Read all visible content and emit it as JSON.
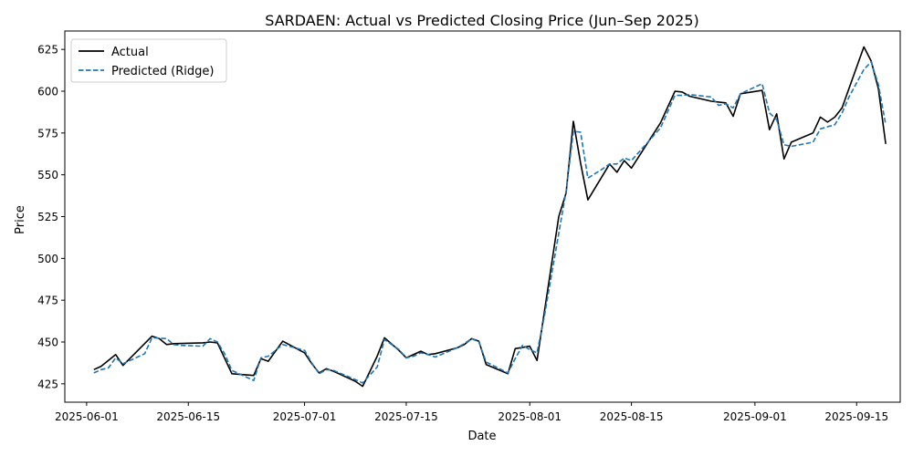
{
  "chart_data": {
    "type": "line",
    "title": "SARDAEN: Actual vs Predicted Closing Price (Jun–Sep 2025)",
    "xlabel": "Date",
    "ylabel": "Price",
    "xlim": [
      "2025-05-29",
      "2025-09-21"
    ],
    "ylim": [
      414,
      636
    ],
    "x_ticks": [
      "2025-06-01",
      "2025-06-15",
      "2025-07-01",
      "2025-07-15",
      "2025-08-01",
      "2025-08-15",
      "2025-09-01",
      "2025-09-15"
    ],
    "y_ticks": [
      425,
      450,
      475,
      500,
      525,
      550,
      575,
      600,
      625
    ],
    "legend_position": "upper-left",
    "grid": false,
    "series": [
      {
        "name": "Actual",
        "color": "#000000",
        "style": "solid",
        "points": [
          [
            "2025-06-02",
            433.5
          ],
          [
            "2025-06-03",
            435.5
          ],
          [
            "2025-06-04",
            439
          ],
          [
            "2025-06-05",
            442.5
          ],
          [
            "2025-06-06",
            436
          ],
          [
            "2025-06-10",
            453.5
          ],
          [
            "2025-06-11",
            452
          ],
          [
            "2025-06-12",
            448.5
          ],
          [
            "2025-06-13",
            449
          ],
          [
            "2025-06-17",
            449.5
          ],
          [
            "2025-06-18",
            450
          ],
          [
            "2025-06-19",
            449.5
          ],
          [
            "2025-06-21",
            431
          ],
          [
            "2025-06-24",
            430
          ],
          [
            "2025-06-25",
            440
          ],
          [
            "2025-06-26",
            438.5
          ],
          [
            "2025-06-28",
            450.5
          ],
          [
            "2025-07-01",
            443.5
          ],
          [
            "2025-07-02",
            437
          ],
          [
            "2025-07-03",
            431.5
          ],
          [
            "2025-07-04",
            434
          ],
          [
            "2025-07-05",
            432.5
          ],
          [
            "2025-07-08",
            426.5
          ],
          [
            "2025-07-09",
            423.5
          ],
          [
            "2025-07-10",
            432.5
          ],
          [
            "2025-07-11",
            441.5
          ],
          [
            "2025-07-12",
            452.5
          ],
          [
            "2025-07-14",
            445
          ],
          [
            "2025-07-15",
            440.5
          ],
          [
            "2025-07-17",
            444.5
          ],
          [
            "2025-07-18",
            442.5
          ],
          [
            "2025-07-19",
            443
          ],
          [
            "2025-07-22",
            446.5
          ],
          [
            "2025-07-23",
            448.5
          ],
          [
            "2025-07-24",
            452
          ],
          [
            "2025-07-25",
            450.5
          ],
          [
            "2025-07-26",
            436.5
          ],
          [
            "2025-07-29",
            431
          ],
          [
            "2025-07-30",
            446
          ],
          [
            "2025-08-01",
            447.5
          ],
          [
            "2025-08-02",
            439
          ],
          [
            "2025-08-05",
            525
          ],
          [
            "2025-08-06",
            539
          ],
          [
            "2025-08-07",
            582
          ],
          [
            "2025-08-08",
            557
          ],
          [
            "2025-08-09",
            535
          ],
          [
            "2025-08-12",
            556.5
          ],
          [
            "2025-08-13",
            551.5
          ],
          [
            "2025-08-14",
            558.5
          ],
          [
            "2025-08-15",
            554
          ],
          [
            "2025-08-19",
            581
          ],
          [
            "2025-08-21",
            600
          ],
          [
            "2025-08-22",
            599.5
          ],
          [
            "2025-08-23",
            597
          ],
          [
            "2025-08-26",
            594
          ],
          [
            "2025-08-28",
            593
          ],
          [
            "2025-08-29",
            585
          ],
          [
            "2025-08-30",
            598.5
          ],
          [
            "2025-09-02",
            600.5
          ],
          [
            "2025-09-03",
            577
          ],
          [
            "2025-09-04",
            586.5
          ],
          [
            "2025-09-05",
            559.5
          ],
          [
            "2025-09-06",
            569.5
          ],
          [
            "2025-09-09",
            575
          ],
          [
            "2025-09-10",
            584.5
          ],
          [
            "2025-09-11",
            581.5
          ],
          [
            "2025-09-12",
            584.5
          ],
          [
            "2025-09-13",
            590
          ],
          [
            "2025-09-16",
            626.5
          ],
          [
            "2025-09-17",
            618
          ],
          [
            "2025-09-18",
            601.5
          ],
          [
            "2025-09-19",
            568.5
          ]
        ]
      },
      {
        "name": "Predicted (Ridge)",
        "color": "#1f77b4",
        "style": "dashed",
        "points": [
          [
            "2025-06-02",
            431.5
          ],
          [
            "2025-06-03",
            433.5
          ],
          [
            "2025-06-04",
            434.5
          ],
          [
            "2025-06-05",
            440.5
          ],
          [
            "2025-06-06",
            437
          ],
          [
            "2025-06-07",
            439
          ],
          [
            "2025-06-09",
            443
          ],
          [
            "2025-06-10",
            452.5
          ],
          [
            "2025-06-12",
            452
          ],
          [
            "2025-06-13",
            448.5
          ],
          [
            "2025-06-14",
            448
          ],
          [
            "2025-06-17",
            447.5
          ],
          [
            "2025-06-18",
            452
          ],
          [
            "2025-06-19",
            450
          ],
          [
            "2025-06-20",
            443
          ],
          [
            "2025-06-21",
            433
          ],
          [
            "2025-06-24",
            427
          ],
          [
            "2025-06-25",
            440.5
          ],
          [
            "2025-06-26",
            441.5
          ],
          [
            "2025-06-28",
            448.5
          ],
          [
            "2025-07-01",
            445
          ],
          [
            "2025-07-02",
            437.5
          ],
          [
            "2025-07-03",
            431
          ],
          [
            "2025-07-04",
            433.5
          ],
          [
            "2025-07-05",
            433
          ],
          [
            "2025-07-08",
            427.5
          ],
          [
            "2025-07-09",
            425.5
          ],
          [
            "2025-07-11",
            435
          ],
          [
            "2025-07-12",
            451.5
          ],
          [
            "2025-07-14",
            445.5
          ],
          [
            "2025-07-15",
            440.5
          ],
          [
            "2025-07-16",
            441.5
          ],
          [
            "2025-07-17",
            443.5
          ],
          [
            "2025-07-18",
            442.5
          ],
          [
            "2025-07-19",
            441
          ],
          [
            "2025-07-22",
            446.5
          ],
          [
            "2025-07-23",
            449
          ],
          [
            "2025-07-24",
            452
          ],
          [
            "2025-07-25",
            450
          ],
          [
            "2025-07-26",
            438
          ],
          [
            "2025-07-29",
            431.5
          ],
          [
            "2025-07-30",
            440
          ],
          [
            "2025-07-31",
            448
          ],
          [
            "2025-08-01",
            445.5
          ],
          [
            "2025-08-02",
            443.5
          ],
          [
            "2025-08-03",
            465
          ],
          [
            "2025-08-05",
            515
          ],
          [
            "2025-08-06",
            540
          ],
          [
            "2025-08-07",
            576
          ],
          [
            "2025-08-08",
            575.5
          ],
          [
            "2025-08-09",
            548
          ],
          [
            "2025-08-11",
            553.5
          ],
          [
            "2025-08-12",
            556.5
          ],
          [
            "2025-08-13",
            556.5
          ],
          [
            "2025-08-14",
            560
          ],
          [
            "2025-08-15",
            558.5
          ],
          [
            "2025-08-19",
            578
          ],
          [
            "2025-08-21",
            597.5
          ],
          [
            "2025-08-22",
            597.5
          ],
          [
            "2025-08-23",
            598
          ],
          [
            "2025-08-26",
            596.5
          ],
          [
            "2025-08-27",
            591.5
          ],
          [
            "2025-08-28",
            592.5
          ],
          [
            "2025-08-29",
            590
          ],
          [
            "2025-08-30",
            598.5
          ],
          [
            "2025-09-02",
            604.5
          ],
          [
            "2025-09-03",
            587
          ],
          [
            "2025-09-04",
            583
          ],
          [
            "2025-09-05",
            568
          ],
          [
            "2025-09-06",
            567
          ],
          [
            "2025-09-09",
            569.5
          ],
          [
            "2025-09-10",
            577.5
          ],
          [
            "2025-09-12",
            580
          ],
          [
            "2025-09-13",
            587
          ],
          [
            "2025-09-14",
            597
          ],
          [
            "2025-09-16",
            613
          ],
          [
            "2025-09-17",
            617.5
          ],
          [
            "2025-09-18",
            604
          ],
          [
            "2025-09-19",
            580
          ]
        ]
      }
    ]
  }
}
